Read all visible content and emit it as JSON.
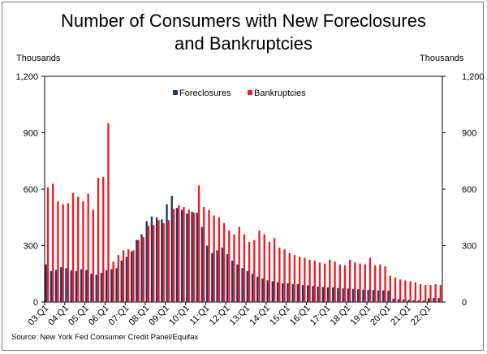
{
  "title_line1": "Number of Consumers with New Foreclosures",
  "title_line2": "and Bankruptcies",
  "unit_left": "Thousands",
  "unit_right": "Thousands",
  "source": "Source: New York Fed Consumer Credit Panel/Equifax",
  "colors": {
    "foreclosures": "#1f3864",
    "bankruptcies": "#ee1c25",
    "axis": "#000000"
  },
  "chart_data": {
    "type": "bar",
    "title": "Number of Consumers with New Foreclosures and Bankruptcies",
    "ylabel": "Thousands",
    "ylim": [
      0,
      1200
    ],
    "yticks": [
      0,
      300,
      600,
      900,
      1200
    ],
    "ytick_labels": [
      "0",
      "300",
      "600",
      "900",
      "1,200"
    ],
    "grid": false,
    "legend": "top-center",
    "categories": [
      "03:Q1",
      "03:Q2",
      "03:Q3",
      "03:Q4",
      "04:Q1",
      "04:Q2",
      "04:Q3",
      "04:Q4",
      "05:Q1",
      "05:Q2",
      "05:Q3",
      "05:Q4",
      "06:Q1",
      "06:Q2",
      "06:Q3",
      "06:Q4",
      "07:Q1",
      "07:Q2",
      "07:Q3",
      "07:Q4",
      "08:Q1",
      "08:Q2",
      "08:Q3",
      "08:Q4",
      "09:Q1",
      "09:Q2",
      "09:Q3",
      "09:Q4",
      "10:Q1",
      "10:Q2",
      "10:Q3",
      "10:Q4",
      "11:Q1",
      "11:Q2",
      "11:Q3",
      "11:Q4",
      "12:Q1",
      "12:Q2",
      "12:Q3",
      "12:Q4",
      "13:Q1",
      "13:Q2",
      "13:Q3",
      "13:Q4",
      "14:Q1",
      "14:Q2",
      "14:Q3",
      "14:Q4",
      "15:Q1",
      "15:Q2",
      "15:Q3",
      "15:Q4",
      "16:Q1",
      "16:Q2",
      "16:Q3",
      "16:Q4",
      "17:Q1",
      "17:Q2",
      "17:Q3",
      "17:Q4",
      "18:Q1",
      "18:Q2",
      "18:Q3",
      "18:Q4",
      "19:Q1",
      "19:Q2",
      "19:Q3",
      "19:Q4",
      "20:Q1",
      "20:Q2",
      "20:Q3",
      "20:Q4",
      "21:Q1",
      "21:Q2",
      "21:Q3",
      "21:Q4",
      "22:Q1",
      "22:Q2",
      "22:Q3"
    ],
    "xtick_labels": [
      "03:Q1",
      "04:Q1",
      "05:Q1",
      "06:Q1",
      "07:Q1",
      "08:Q1",
      "09:Q1",
      "10:Q1",
      "11:Q1",
      "12:Q1",
      "13:Q1",
      "14:Q1",
      "15:Q1",
      "16:Q1",
      "17:Q1",
      "18:Q1",
      "19:Q1",
      "20:Q1",
      "21:Q1",
      "22:Q1"
    ],
    "series": [
      {
        "name": "Foreclosures",
        "values": [
          200,
          165,
          170,
          185,
          180,
          168,
          165,
          175,
          170,
          150,
          145,
          155,
          170,
          175,
          180,
          220,
          240,
          270,
          330,
          360,
          430,
          455,
          450,
          440,
          520,
          565,
          500,
          490,
          470,
          480,
          475,
          400,
          300,
          260,
          275,
          290,
          255,
          220,
          200,
          180,
          165,
          150,
          135,
          125,
          115,
          110,
          105,
          100,
          100,
          95,
          95,
          90,
          88,
          85,
          82,
          80,
          78,
          78,
          75,
          72,
          72,
          70,
          68,
          66,
          65,
          64,
          62,
          62,
          60,
          18,
          15,
          14,
          12,
          10,
          9,
          8,
          20,
          22,
          22
        ]
      },
      {
        "name": "Bankruptcies",
        "values": [
          610,
          630,
          535,
          520,
          525,
          580,
          560,
          535,
          575,
          490,
          660,
          665,
          950,
          215,
          250,
          275,
          280,
          275,
          330,
          345,
          405,
          410,
          435,
          420,
          435,
          495,
          515,
          505,
          490,
          475,
          620,
          505,
          490,
          460,
          450,
          420,
          380,
          360,
          400,
          360,
          320,
          330,
          380,
          360,
          320,
          340,
          290,
          280,
          260,
          250,
          240,
          235,
          225,
          220,
          210,
          205,
          225,
          215,
          200,
          195,
          225,
          210,
          205,
          200,
          235,
          195,
          200,
          190,
          140,
          130,
          120,
          115,
          110,
          105,
          95,
          90,
          90,
          95,
          90
        ]
      }
    ]
  }
}
